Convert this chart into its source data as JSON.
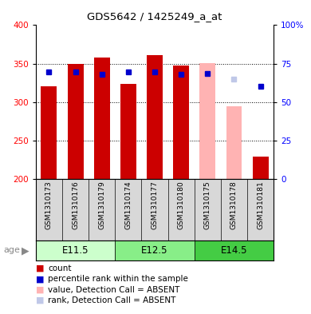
{
  "title": "GDS5642 / 1425249_a_at",
  "samples": [
    "GSM1310173",
    "GSM1310176",
    "GSM1310179",
    "GSM1310174",
    "GSM1310177",
    "GSM1310180",
    "GSM1310175",
    "GSM1310178",
    "GSM1310181"
  ],
  "bar_values": [
    321,
    350,
    358,
    324,
    361,
    347,
    351,
    295,
    229
  ],
  "bar_colors": [
    "#cc0000",
    "#cc0000",
    "#cc0000",
    "#cc0000",
    "#cc0000",
    "#cc0000",
    "#ffb3b3",
    "#ffb3b3",
    "#cc0000"
  ],
  "percentile_values": [
    339,
    339,
    336,
    339,
    339,
    336,
    337,
    330,
    320
  ],
  "percentile_colors": [
    "#0000cc",
    "#0000cc",
    "#0000cc",
    "#0000cc",
    "#0000cc",
    "#0000cc",
    "#0000cc",
    "#c0c8e8",
    "#0000cc"
  ],
  "ylim_left": [
    200,
    400
  ],
  "ylim_right": [
    0,
    100
  ],
  "yticks_left": [
    200,
    250,
    300,
    350,
    400
  ],
  "yticks_right": [
    0,
    25,
    50,
    75,
    100
  ],
  "ytick_labels_right": [
    "0",
    "25",
    "50",
    "75",
    "100%"
  ],
  "age_groups": [
    {
      "label": "E11.5",
      "samples": [
        0,
        1,
        2
      ],
      "color": "#ccffcc"
    },
    {
      "label": "E12.5",
      "samples": [
        3,
        4,
        5
      ],
      "color": "#88ee88"
    },
    {
      "label": "E14.5",
      "samples": [
        6,
        7,
        8
      ],
      "color": "#44cc44"
    }
  ],
  "grid_yticks": [
    250,
    300,
    350
  ],
  "bar_width": 0.6,
  "background_color": "#ffffff",
  "plot_bg": "#ffffff",
  "legend_items": [
    {
      "label": "count",
      "color": "#cc0000"
    },
    {
      "label": "percentile rank within the sample",
      "color": "#0000cc"
    },
    {
      "label": "value, Detection Call = ABSENT",
      "color": "#ffb3b3"
    },
    {
      "label": "rank, Detection Call = ABSENT",
      "color": "#c0c8e8"
    }
  ]
}
